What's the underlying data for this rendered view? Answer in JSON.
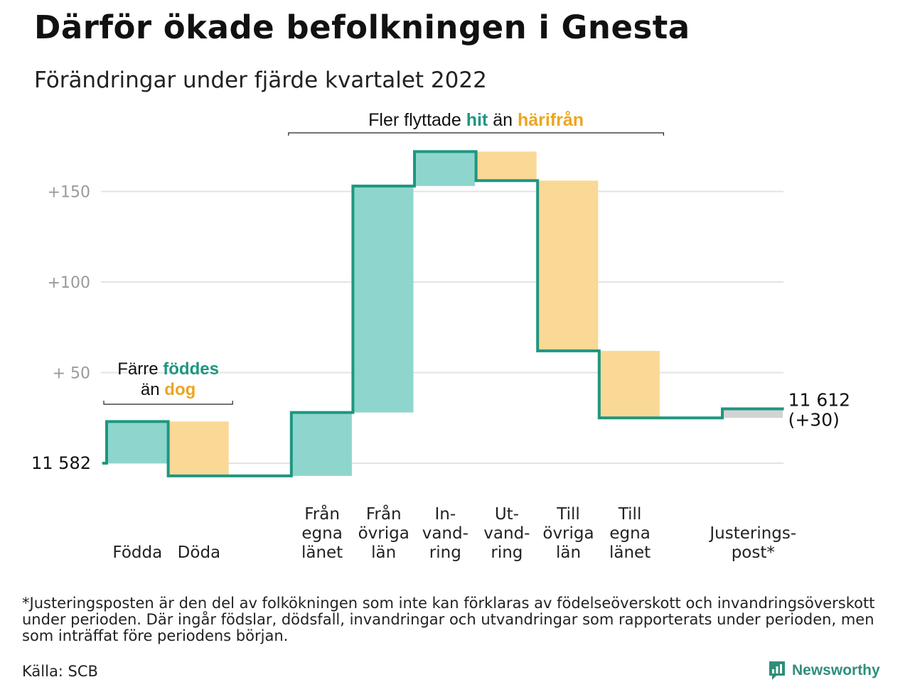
{
  "title": "Därför ökade befolkningen i Gnesta",
  "subtitle": "Förändringar under fjärde kvartalet 2022",
  "colors": {
    "inflow": "#8ed6cd",
    "outflow": "#fad896",
    "adjustment": "#d3d3d3",
    "line": "#1e9681",
    "grid": "#e3e3e3",
    "tick": "#9a9a9a",
    "teal_text": "#1e9681",
    "orange_text": "#eda521"
  },
  "chart_data": {
    "type": "waterfall",
    "start_value": 0,
    "start_label": "11 582",
    "end_value": 30,
    "end_labels": [
      "11 612",
      "(+30)"
    ],
    "ylim": [
      -10,
      172
    ],
    "yticks": [
      {
        "value": 150,
        "label": "+150"
      },
      {
        "value": 100,
        "label": "+100"
      },
      {
        "value": 50,
        "label": "+ 50"
      }
    ],
    "steps": [
      {
        "category": [
          "Födda"
        ],
        "value": 23,
        "kind": "inflow"
      },
      {
        "category": [
          "Döda"
        ],
        "value": -30,
        "kind": "outflow"
      },
      {
        "category": [],
        "value": 0,
        "kind": "gap"
      },
      {
        "category": [
          "Från",
          "egna",
          "länet"
        ],
        "value": 35,
        "kind": "inflow"
      },
      {
        "category": [
          "Från",
          "övriga",
          "län"
        ],
        "value": 125,
        "kind": "inflow"
      },
      {
        "category": [
          "In-",
          "vand-",
          "ring"
        ],
        "value": 19,
        "kind": "inflow"
      },
      {
        "category": [
          "Ut-",
          "vand-",
          "ring"
        ],
        "value": -16,
        "kind": "outflow"
      },
      {
        "category": [
          "Till",
          "övriga",
          "län"
        ],
        "value": -94,
        "kind": "outflow"
      },
      {
        "category": [
          "Till",
          "egna",
          "länet"
        ],
        "value": -37,
        "kind": "outflow"
      },
      {
        "category": [],
        "value": 0,
        "kind": "gap"
      },
      {
        "category": [
          "Justerings-",
          "post*"
        ],
        "value": 5,
        "kind": "adjustment"
      }
    ],
    "annotations": {
      "births": {
        "line1": "Färre ",
        "em1": "föddes",
        "line2": "än ",
        "em2": "dog"
      },
      "migration": {
        "pre": "Fler flyttade ",
        "em1": "hit",
        "mid": " än ",
        "em2": "härifrån"
      }
    }
  },
  "footnote": "*Justeringsposten är den del av folkökningen som inte kan förklaras av födelseöverskott och invandringsöverskott under perioden. Där ingår födslar, dödsfall, invandringar och utvandringar som rapporterats under perioden, men som inträffat före periodens början.",
  "source": "Källa: SCB",
  "brand": {
    "name": "Newsworthy",
    "icon": "bar-chart-logo-icon"
  }
}
